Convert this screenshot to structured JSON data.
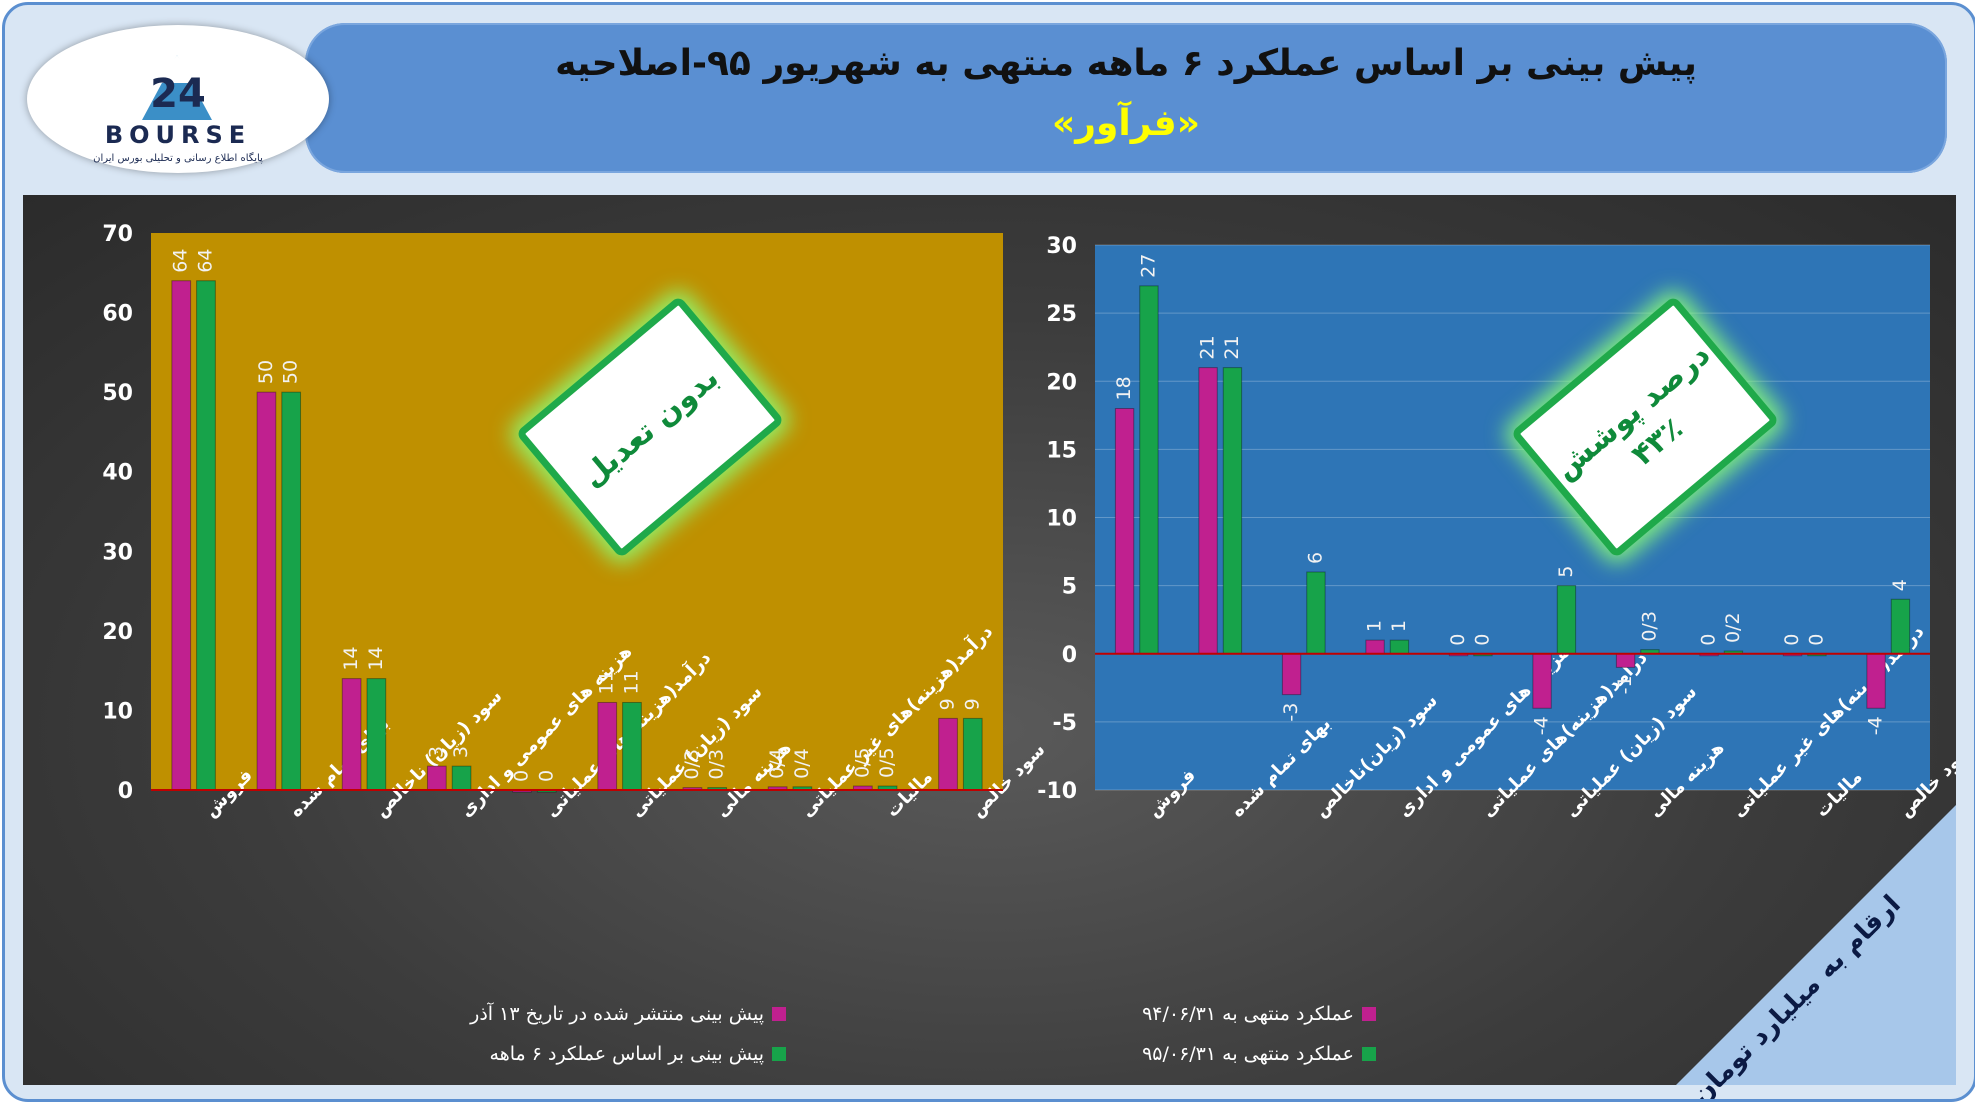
{
  "header": {
    "title": "پیش بینی بر اساس عملکرد ۶ ماهه منتهی به شهریور ۹۵-اصلاحیه",
    "subtitle": "«فرآور»"
  },
  "logo": {
    "text": "BOURSE",
    "subtitle": "پایگاه اطلاع رسانی و تحلیلی بورس ایران"
  },
  "left_stamp": "بدون تعدیل",
  "right_stamp": {
    "line1": "درصد پوشش",
    "line2": "۴۳٪"
  },
  "corner_note": "ارقام به میلیارد تومان",
  "colors": {
    "series1": "#c0208f",
    "series2": "#17a34a",
    "left_plot_bg": "#bf9000",
    "right_plot_bg": "#2e75b6",
    "axis_line": "#c00000"
  },
  "chart_data": [
    {
      "type": "bar",
      "categories": [
        "فروش",
        "بهای تمام شده",
        "سود (زیان) ناخالص",
        "هزینه های عمومی و اداری",
        "درآمد(هزینه)های عملیاتی",
        "سود (زیان) عملیاتی",
        "هزینه مالی",
        "درآمد(هزینه)های غیر عملیاتی",
        "مالیات",
        "سود خالص"
      ],
      "series": [
        {
          "name": "پیش بینی منتشر شده در تاریخ ۱۳ آذر",
          "values": [
            64,
            50,
            14,
            3,
            0,
            11,
            0.3,
            0.4,
            0.5,
            9
          ],
          "labels": [
            "64",
            "50",
            "14",
            "3",
            "0",
            "11",
            "0/3",
            "0/4",
            "0/5",
            "9"
          ]
        },
        {
          "name": "پیش بینی بر اساس عملکرد ۶ ماهه",
          "values": [
            64,
            50,
            14,
            3,
            0,
            11,
            0.3,
            0.4,
            0.5,
            9
          ],
          "labels": [
            "64",
            "50",
            "14",
            "3",
            "0",
            "11",
            "0/3",
            "0/4",
            "0/5",
            "9"
          ]
        }
      ],
      "ylim": [
        0,
        70
      ],
      "yticks": [
        0,
        10,
        20,
        30,
        40,
        50,
        60,
        70
      ],
      "grid": false,
      "legend": "bottom"
    },
    {
      "type": "bar",
      "categories": [
        "فروش",
        "بهای تمام شده",
        "سود (زیان)ناخالص",
        "هزینه های عمومی و اداری",
        "درآمد(هزینه)های عملیاتی",
        "سود (زیان) عملیاتی",
        "هزینه مالی",
        "درآمد(هزینه)های غیر عملیاتی",
        "مالیات",
        "سود خالص"
      ],
      "series": [
        {
          "name": "عملکرد منتهی به ۹۴/۰۶/۳۱",
          "values": [
            18,
            21,
            -3,
            1,
            0,
            -4,
            -1,
            0,
            0,
            -4
          ],
          "labels": [
            "18",
            "21",
            "-3",
            "1",
            "0",
            "-4",
            "-1",
            "0",
            "0",
            "-4"
          ]
        },
        {
          "name": "عملکرد منتهی به ۹۵/۰۶/۳۱",
          "values": [
            27,
            21,
            6,
            1,
            0,
            5,
            0.3,
            0.2,
            0,
            4
          ],
          "labels": [
            "27",
            "21",
            "6",
            "1",
            "0",
            "5",
            "0/3",
            "0/2",
            "0",
            "4"
          ]
        }
      ],
      "ylim": [
        -10,
        30
      ],
      "yticks": [
        -10,
        -5,
        0,
        5,
        10,
        15,
        20,
        25,
        30
      ],
      "grid": true,
      "legend": "bottom"
    }
  ]
}
